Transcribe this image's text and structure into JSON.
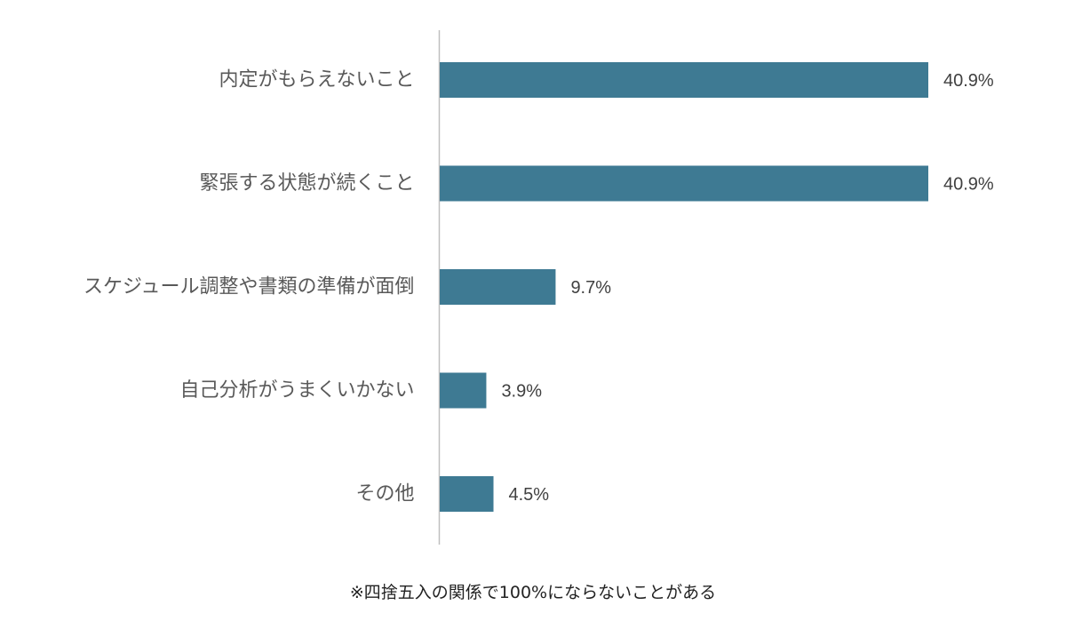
{
  "chart_data": {
    "type": "bar",
    "orientation": "horizontal",
    "categories": [
      "内定がもらえないこと",
      "緊張する状態が続くこと",
      "スケジュール調整や書類の準備が面倒",
      "自己分析がうまくいかない",
      "その他"
    ],
    "values": [
      40.9,
      40.9,
      9.7,
      3.9,
      4.5
    ],
    "value_labels": [
      "40.9%",
      "40.9%",
      "9.7%",
      "3.9%",
      "4.5%"
    ],
    "unit": "%",
    "xlim": [
      0,
      45
    ],
    "grid": false,
    "legend": "none",
    "bar_color": "#3e7a93",
    "axis_color": "#bfbfbf"
  },
  "footnote": "※四捨五入の関係で100%にならないことがある"
}
